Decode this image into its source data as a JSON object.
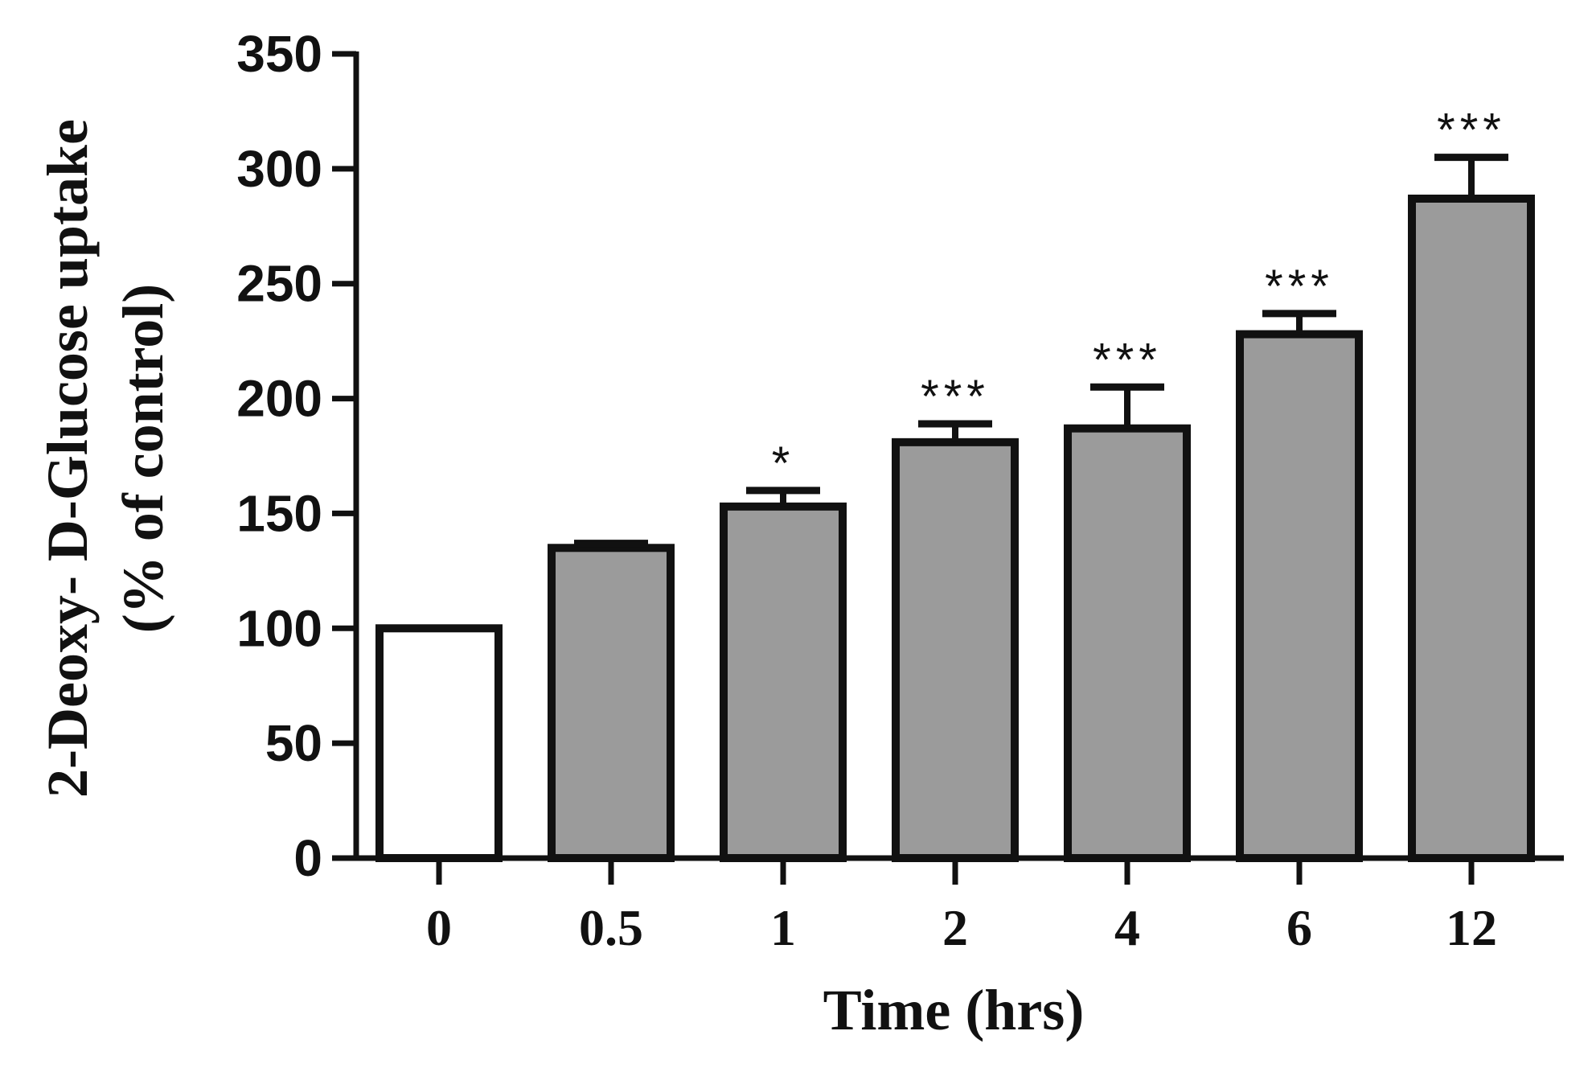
{
  "chart_data": {
    "type": "bar",
    "title": "",
    "xlabel": "Time (hrs)",
    "ylabel": [
      "2-Deoxy- D-Glucose uptake",
      "(% of control)"
    ],
    "categories": [
      "0",
      "0.5",
      "1",
      "2",
      "4",
      "6",
      "12"
    ],
    "values": [
      100,
      135,
      153,
      181,
      187,
      228,
      287
    ],
    "errors": [
      0,
      2,
      7,
      8,
      18,
      9,
      18
    ],
    "significance": [
      "",
      "",
      "*",
      "***",
      "***",
      "***",
      "***"
    ],
    "bar_colors": [
      "#ffffff",
      "#9b9b9b",
      "#9b9b9b",
      "#9b9b9b",
      "#9b9b9b",
      "#9b9b9b",
      "#9b9b9b"
    ],
    "ylim": [
      0,
      350
    ],
    "yticks": [
      "0",
      "50",
      "100",
      "150",
      "200",
      "250",
      "300",
      "350"
    ],
    "grid": false
  }
}
